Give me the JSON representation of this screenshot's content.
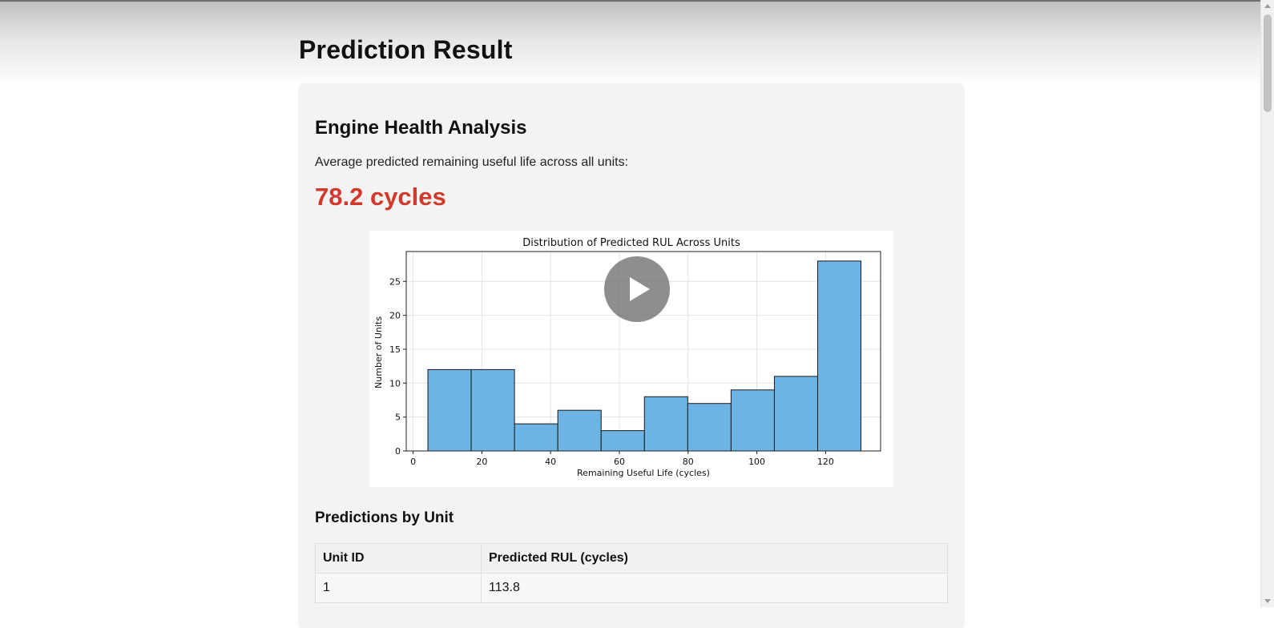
{
  "page": {
    "title": "Prediction Result"
  },
  "analysis": {
    "section_title": "Engine Health Analysis",
    "avg_text": "Average predicted remaining useful life across all units:",
    "avg_value": "78.2 cycles"
  },
  "colors": {
    "accent_red": "#d0392b",
    "bar_fill": "#6cb4e4",
    "bar_stroke": "#1a1a1a"
  },
  "chart_data": {
    "type": "bar",
    "title": "Distribution of Predicted RUL Across Units",
    "xlabel": "Remaining Useful Life (cycles)",
    "ylabel": "Number of Units",
    "bin_edges": [
      4.3,
      16.9,
      29.5,
      42.1,
      54.7,
      67.3,
      79.9,
      92.5,
      105.1,
      117.7,
      130.3
    ],
    "values": [
      12,
      12,
      4,
      6,
      3,
      8,
      7,
      9,
      11,
      28
    ],
    "xlim": [
      -2,
      136
    ],
    "ylim": [
      0,
      29.4
    ],
    "xticks": [
      0,
      20,
      40,
      60,
      80,
      100,
      120
    ],
    "yticks": [
      0,
      5,
      10,
      15,
      20,
      25
    ],
    "grid": true
  },
  "video": {
    "play_icon": "play-icon"
  },
  "predictions": {
    "title": "Predictions by Unit",
    "columns": [
      "Unit ID",
      "Predicted RUL (cycles)"
    ],
    "rows": [
      [
        "1",
        "113.8"
      ]
    ]
  }
}
